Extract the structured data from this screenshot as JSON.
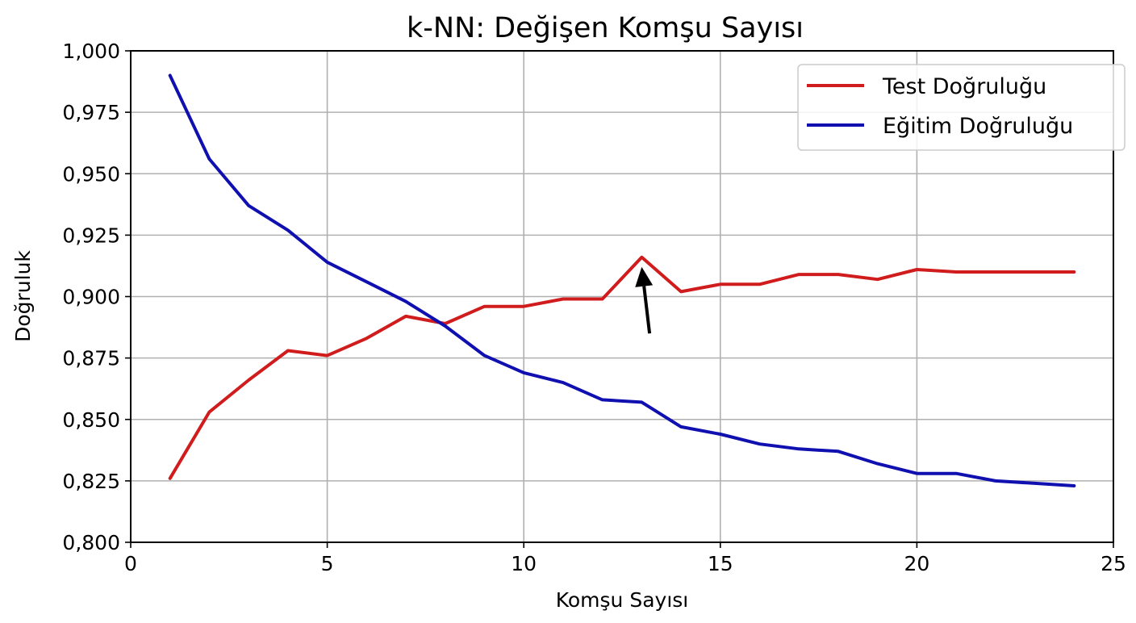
{
  "chart_data": {
    "type": "line",
    "title": "k-NN:  Değişen Komşu Sayısı",
    "xlabel": "Komşu Sayısı",
    "ylabel": "Doğruluk",
    "xlim": [
      0,
      25
    ],
    "ylim": [
      0.8,
      1.0
    ],
    "grid": true,
    "legend_position": "upper right",
    "x_ticks": [
      0,
      5,
      10,
      15,
      20,
      25
    ],
    "x_tick_labels": [
      "0",
      "5",
      "10",
      "15",
      "20",
      "25"
    ],
    "y_ticks": [
      0.8,
      0.825,
      0.85,
      0.875,
      0.9,
      0.925,
      0.95,
      0.975,
      1.0
    ],
    "y_tick_labels": [
      "0,800",
      "0,825",
      "0,850",
      "0,875",
      "0,900",
      "0,925",
      "0,950",
      "0,975",
      "1,000"
    ],
    "x": [
      1,
      2,
      3,
      4,
      5,
      6,
      7,
      8,
      9,
      10,
      11,
      12,
      13,
      14,
      15,
      16,
      17,
      18,
      19,
      20,
      21,
      22,
      23,
      24
    ],
    "series": [
      {
        "name": "Test Doğruluğu",
        "color": "#d01c1c",
        "values": [
          0.826,
          0.853,
          0.866,
          0.878,
          0.876,
          0.883,
          0.892,
          0.889,
          0.896,
          0.896,
          0.899,
          0.899,
          0.916,
          0.902,
          0.905,
          0.905,
          0.909,
          0.909,
          0.907,
          0.911,
          0.91,
          0.91,
          0.91,
          0.91
        ]
      },
      {
        "name": "Eğitim Doğruluğu",
        "color": "#1010b0",
        "values": [
          0.99,
          0.956,
          0.937,
          0.927,
          0.914,
          0.906,
          0.898,
          0.888,
          0.876,
          0.869,
          0.865,
          0.858,
          0.857,
          0.847,
          0.844,
          0.84,
          0.838,
          0.837,
          0.832,
          0.828,
          0.828,
          0.825,
          0.824,
          0.823
        ]
      }
    ],
    "annotations": [
      {
        "type": "arrow",
        "points_to": {
          "x": 13,
          "y": 0.916
        },
        "from": {
          "x": 13.2,
          "y": 0.885
        },
        "color": "#000000"
      }
    ]
  }
}
